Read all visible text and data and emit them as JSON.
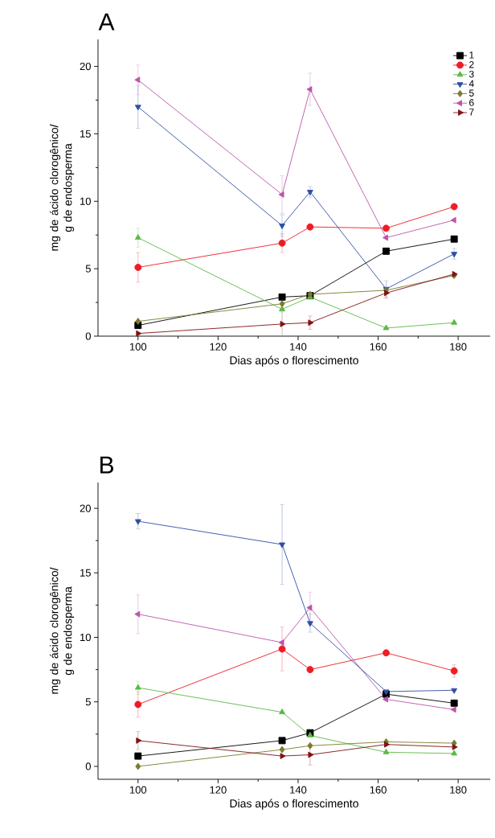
{
  "chart_data": [
    {
      "type": "line",
      "title": "A",
      "xlabel": "Dias após o florescimento",
      "ylabel": "mg de ácido clorogênico/ g de endosperma",
      "x": [
        100,
        136,
        143,
        162,
        179
      ],
      "xlim": [
        90,
        188
      ],
      "ylim": [
        0,
        22
      ],
      "xticks": [
        100,
        120,
        140,
        160,
        180
      ],
      "yticks": [
        0,
        5,
        10,
        15,
        20
      ],
      "legend": "top right",
      "series": [
        {
          "name": "1",
          "color": "#000000",
          "marker": "square",
          "values": [
            0.8,
            2.9,
            3.0,
            6.3,
            7.2
          ],
          "errors": [
            null,
            null,
            null,
            null,
            null
          ]
        },
        {
          "name": "2",
          "color": "#ee1c25",
          "marker": "circle",
          "values": [
            5.1,
            6.9,
            8.1,
            8.0,
            9.6
          ],
          "errors": [
            1.1,
            0.7,
            null,
            null,
            null
          ]
        },
        {
          "name": "3",
          "color": "#5cb946",
          "marker": "triangle",
          "values": [
            7.3,
            2.0,
            2.9,
            0.6,
            1.0
          ],
          "errors": [
            0.7,
            null,
            null,
            null,
            null
          ]
        },
        {
          "name": "4",
          "color": "#2e4fa3",
          "marker": "triangle_down",
          "values": [
            17.0,
            8.2,
            10.7,
            3.5,
            6.1
          ],
          "errors": [
            1.6,
            0.8,
            0.4,
            0.6,
            0.4
          ]
        },
        {
          "name": "5",
          "color": "#7b7b2e",
          "marker": "diamond",
          "values": [
            1.1,
            2.4,
            3.1,
            3.4,
            4.5
          ],
          "errors": [
            null,
            null,
            null,
            null,
            null
          ]
        },
        {
          "name": "6",
          "color": "#bb55aa",
          "marker": "triangle_left",
          "values": [
            19.0,
            10.5,
            18.3,
            7.3,
            8.6
          ],
          "errors": [
            1.1,
            1.4,
            1.2,
            null,
            null
          ]
        },
        {
          "name": "7",
          "color": "#7f1214",
          "marker": "triangle_right",
          "values": [
            0.2,
            0.9,
            1.0,
            3.2,
            4.6
          ],
          "errors": [
            null,
            0.9,
            0.5,
            0.4,
            null
          ]
        }
      ]
    },
    {
      "type": "line",
      "title": "B",
      "xlabel": "Dias após o florescimento",
      "ylabel": "mg de ácido clorogênico/ g de endosperma",
      "x": [
        100,
        136,
        143,
        162,
        179
      ],
      "xlim": [
        90,
        188
      ],
      "ylim": [
        -1,
        22
      ],
      "xticks": [
        100,
        120,
        140,
        160,
        180
      ],
      "yticks": [
        0,
        5,
        10,
        15,
        20
      ],
      "series": [
        {
          "color": "#000000",
          "marker": "square",
          "values": [
            0.8,
            2.0,
            2.6,
            5.6,
            4.9
          ],
          "errors": [
            null,
            null,
            null,
            null,
            null
          ]
        },
        {
          "color": "#ee1c25",
          "marker": "circle",
          "values": [
            4.8,
            9.1,
            7.5,
            8.8,
            7.4
          ],
          "errors": [
            1.0,
            1.7,
            null,
            null,
            0.5
          ]
        },
        {
          "color": "#5cb946",
          "marker": "triangle",
          "values": [
            6.1,
            4.2,
            2.4,
            1.1,
            1.0
          ],
          "errors": [
            0.5,
            null,
            null,
            null,
            null
          ]
        },
        {
          "color": "#2e4fa3",
          "marker": "triangle_down",
          "values": [
            19.0,
            17.2,
            11.1,
            5.8,
            5.9
          ],
          "errors": [
            0.6,
            3.1,
            0.7,
            null,
            null
          ]
        },
        {
          "color": "#7b7b2e",
          "marker": "diamond",
          "values": [
            0.0,
            1.3,
            1.6,
            1.9,
            1.8
          ],
          "errors": [
            null,
            null,
            null,
            null,
            null
          ]
        },
        {
          "color": "#bb55aa",
          "marker": "triangle_left",
          "values": [
            11.8,
            9.6,
            12.3,
            5.2,
            4.4
          ],
          "errors": [
            1.5,
            null,
            1.2,
            null,
            null
          ]
        },
        {
          "color": "#7f1214",
          "marker": "triangle_right",
          "values": [
            2.0,
            0.8,
            0.9,
            1.7,
            1.5
          ],
          "errors": [
            0.7,
            null,
            0.8,
            null,
            null
          ]
        }
      ]
    }
  ]
}
